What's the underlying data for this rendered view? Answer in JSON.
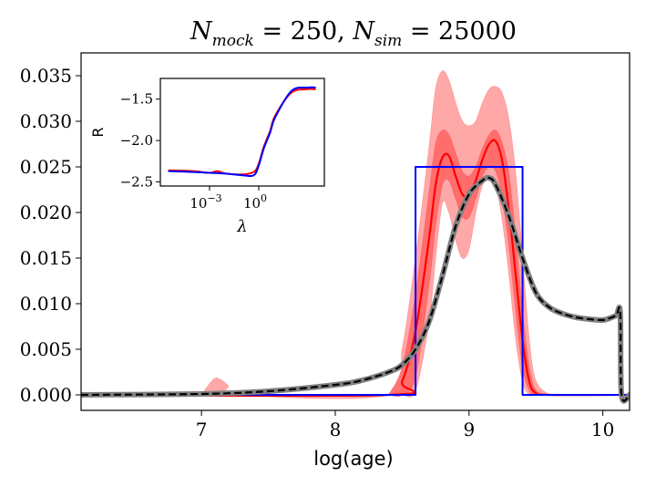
{
  "chart_data": [
    {
      "type": "line",
      "title": "N_mock = 250, N_sim = 25000",
      "title_parts": {
        "n1": "N",
        "s1": "mock",
        "eq1": " = 250, ",
        "n2": "N",
        "s2": "sim",
        "eq2": " = 25000"
      },
      "xlabel": "log(age)",
      "ylabel": "",
      "xlim": [
        6.1,
        10.2
      ],
      "ylim": [
        -0.0017,
        0.0375
      ],
      "xticks": [
        7,
        8,
        9,
        10
      ],
      "xtick_labels": [
        "7",
        "8",
        "9",
        "10"
      ],
      "yticks": [
        0.0,
        0.005,
        0.01,
        0.015,
        0.02,
        0.025,
        0.03,
        0.035
      ],
      "ytick_labels": [
        "0.000",
        "0.005",
        "0.010",
        "0.015",
        "0.020",
        "0.025",
        "0.030",
        "0.035"
      ],
      "grid": false,
      "series": [
        {
          "style": "band-outer",
          "color": "#ff9999",
          "x": [
            7.0,
            7.05,
            7.1,
            7.15,
            7.2,
            7.28,
            8.4,
            8.5,
            8.6,
            8.7,
            8.75,
            8.8,
            8.85,
            8.9,
            8.95,
            9.0,
            9.05,
            9.1,
            9.15,
            9.2,
            9.25,
            9.3,
            9.35,
            9.4,
            9.45,
            9.5,
            9.6
          ],
          "upper": [
            0.0,
            0.001,
            0.0018,
            0.0016,
            0.001,
            0.0,
            0.0,
            0.005,
            0.015,
            0.027,
            0.0335,
            0.0355,
            0.0345,
            0.032,
            0.03,
            0.0295,
            0.03,
            0.032,
            0.0335,
            0.0338,
            0.033,
            0.03,
            0.024,
            0.015,
            0.006,
            0.0015,
            0.0
          ],
          "lower": [
            0.0,
            0.0,
            0.0,
            0.0,
            0.0,
            0.0,
            0.0,
            0.0,
            0.0005,
            0.008,
            0.015,
            0.021,
            0.02,
            0.017,
            0.015,
            0.016,
            0.02,
            0.023,
            0.024,
            0.023,
            0.019,
            0.013,
            0.006,
            0.0015,
            0.0,
            0.0,
            0.0
          ]
        },
        {
          "style": "band-inner",
          "color": "#ff6666",
          "x": [
            8.4,
            8.5,
            8.6,
            8.7,
            8.75,
            8.8,
            8.85,
            8.9,
            8.95,
            9.0,
            9.05,
            9.1,
            9.15,
            9.2,
            9.25,
            9.3,
            9.35,
            9.4,
            9.45,
            9.5,
            9.6
          ],
          "upper": [
            0.0,
            0.003,
            0.011,
            0.022,
            0.0275,
            0.029,
            0.0285,
            0.0265,
            0.0245,
            0.024,
            0.025,
            0.027,
            0.0285,
            0.029,
            0.0275,
            0.024,
            0.017,
            0.009,
            0.003,
            0.0005,
            0.0
          ],
          "lower": [
            0.0,
            0.0,
            0.002,
            0.012,
            0.0185,
            0.023,
            0.0235,
            0.0215,
            0.0195,
            0.0195,
            0.0215,
            0.024,
            0.025,
            0.0245,
            0.0215,
            0.016,
            0.009,
            0.003,
            0.0005,
            0.0,
            0.0
          ]
        },
        {
          "style": "line",
          "color": "#ff0000",
          "x": [
            6.1,
            8.4,
            8.5,
            8.6,
            8.7,
            8.75,
            8.8,
            8.85,
            8.9,
            8.95,
            9.0,
            9.05,
            9.1,
            9.15,
            9.2,
            9.25,
            9.3,
            9.35,
            9.4,
            9.45,
            9.5,
            9.6,
            10.2
          ],
          "y": [
            0.0,
            0.0,
            0.0015,
            0.007,
            0.017,
            0.023,
            0.026,
            0.0262,
            0.024,
            0.022,
            0.0218,
            0.0235,
            0.0258,
            0.0275,
            0.0278,
            0.0255,
            0.02,
            0.013,
            0.006,
            0.0015,
            0.0002,
            0.0,
            0.0
          ]
        },
        {
          "style": "step",
          "color": "#0000ff",
          "x": [
            6.1,
            8.6,
            8.6,
            9.4,
            9.4,
            10.2
          ],
          "y": [
            0.0,
            0.0,
            0.025,
            0.025,
            0.0,
            0.0
          ]
        },
        {
          "style": "thick",
          "color": "#808080",
          "x": [
            6.1,
            7.0,
            7.5,
            8.0,
            8.2,
            8.4,
            8.5,
            8.6,
            8.7,
            8.8,
            8.9,
            9.0,
            9.1,
            9.15,
            9.2,
            9.3,
            9.4,
            9.5,
            9.6,
            9.7,
            9.8,
            9.9,
            10.0,
            10.05,
            10.1,
            10.13,
            10.14,
            10.2
          ],
          "y": [
            0.0,
            0.0001,
            0.0004,
            0.0011,
            0.0016,
            0.0025,
            0.0033,
            0.005,
            0.008,
            0.013,
            0.0185,
            0.022,
            0.0235,
            0.0238,
            0.023,
            0.0195,
            0.015,
            0.0112,
            0.0096,
            0.0089,
            0.0085,
            0.0083,
            0.0082,
            0.0084,
            0.0087,
            0.009,
            0.0,
            0.0
          ]
        },
        {
          "style": "dashed",
          "color": "#000000",
          "x": [
            6.1,
            7.0,
            7.5,
            8.0,
            8.2,
            8.4,
            8.5,
            8.6,
            8.7,
            8.8,
            8.9,
            9.0,
            9.1,
            9.15,
            9.2,
            9.3,
            9.4,
            9.5,
            9.6,
            9.7,
            9.8,
            9.9,
            10.0,
            10.05,
            10.1,
            10.13,
            10.14,
            10.2
          ],
          "y": [
            0.0,
            0.0001,
            0.0004,
            0.0011,
            0.0016,
            0.0025,
            0.0033,
            0.005,
            0.008,
            0.013,
            0.0185,
            0.022,
            0.0235,
            0.0238,
            0.023,
            0.0195,
            0.015,
            0.0112,
            0.0096,
            0.0089,
            0.0085,
            0.0083,
            0.0082,
            0.0084,
            0.0087,
            0.009,
            0.0,
            0.0
          ]
        }
      ]
    },
    {
      "type": "line",
      "title": "",
      "xlabel": "λ",
      "ylabel": "R",
      "xscale": "log",
      "xlim": [
        1e-06,
        10000
      ],
      "ylim": [
        -2.55,
        -1.25
      ],
      "xticks": [
        0.001,
        1
      ],
      "xtick_labels": [
        {
          "base": "10",
          "exp": "−3"
        },
        {
          "base": "10",
          "exp": "0"
        }
      ],
      "yticks": [
        -2.5,
        -2.0,
        -1.5
      ],
      "ytick_labels": [
        "−2.5",
        "−2.0",
        "−1.5"
      ],
      "grid": false,
      "series": [
        {
          "color": "#ff0000",
          "x": [
            3e-06,
            0.0001,
            0.001,
            0.003,
            0.01,
            0.1,
            0.5,
            1,
            2,
            5,
            10,
            100,
            1000,
            3000
          ],
          "y": [
            -2.36,
            -2.37,
            -2.39,
            -2.37,
            -2.4,
            -2.41,
            -2.38,
            -2.28,
            -2.08,
            -1.88,
            -1.7,
            -1.42,
            -1.38,
            -1.38
          ]
        },
        {
          "color": "#0000ff",
          "x": [
            3e-06,
            0.0001,
            0.001,
            0.01,
            0.1,
            0.5,
            1,
            2,
            5,
            10,
            100,
            1000,
            3000
          ],
          "y": [
            -2.37,
            -2.38,
            -2.39,
            -2.4,
            -2.42,
            -2.42,
            -2.3,
            -2.1,
            -1.9,
            -1.72,
            -1.4,
            -1.36,
            -1.36
          ]
        }
      ]
    }
  ]
}
